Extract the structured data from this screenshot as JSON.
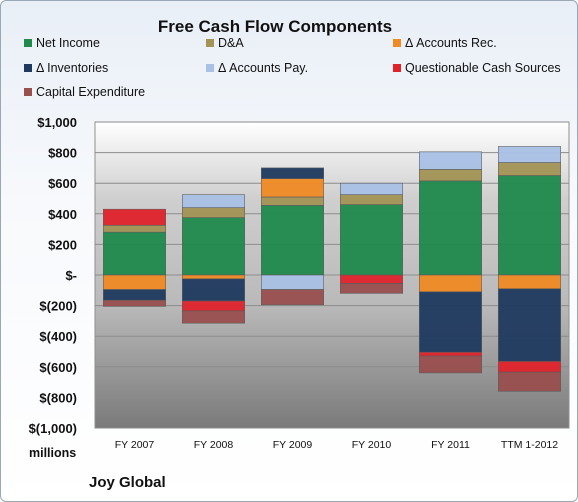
{
  "chart_data": {
    "type": "bar",
    "stacked": true,
    "title": "Free Cash Flow Components",
    "units_label": "millions",
    "footer": "Joy Global",
    "categories": [
      "FY 2007",
      "FY 2008",
      "FY 2009",
      "FY 2010",
      "FY 2011",
      "TTM 1-2012"
    ],
    "ylim": [
      -1000,
      1000
    ],
    "yticks": [
      1000,
      800,
      600,
      400,
      200,
      0,
      -200,
      -400,
      -600,
      -800,
      -1000
    ],
    "ytick_labels": [
      "$1,000",
      "$800",
      "$600",
      "$400",
      "$200",
      "$-",
      "$(200)",
      "$(400)",
      "$(600)",
      "$(800)",
      "$(1,000)"
    ],
    "legend_position": "top",
    "series": [
      {
        "name": "Net Income",
        "color": "#1f8a4c",
        "values": [
          280,
          375,
          455,
          460,
          615,
          650
        ]
      },
      {
        "name": "D&A",
        "color": "#a39455",
        "values": [
          45,
          65,
          55,
          65,
          75,
          85
        ]
      },
      {
        "name": "Δ Accounts Rec.",
        "color": "#f08a24",
        "values": [
          -95,
          -25,
          120,
          0,
          -110,
          -90
        ]
      },
      {
        "name": "Δ Inventories",
        "color": "#1f3a5f",
        "values": [
          -70,
          -145,
          70,
          0,
          -395,
          -475
        ]
      },
      {
        "name": "Δ Accounts Pay.",
        "color": "#a9c1e6",
        "values": [
          0,
          85,
          -95,
          75,
          115,
          105
        ]
      },
      {
        "name": "Questionable Cash Sources",
        "color": "#e0232b",
        "values": [
          105,
          -65,
          0,
          -55,
          -25,
          -70
        ]
      },
      {
        "name": "Capital Expenditure",
        "color": "#9a4f4f",
        "values": [
          -40,
          -80,
          -100,
          -65,
          -110,
          -125
        ]
      }
    ]
  }
}
